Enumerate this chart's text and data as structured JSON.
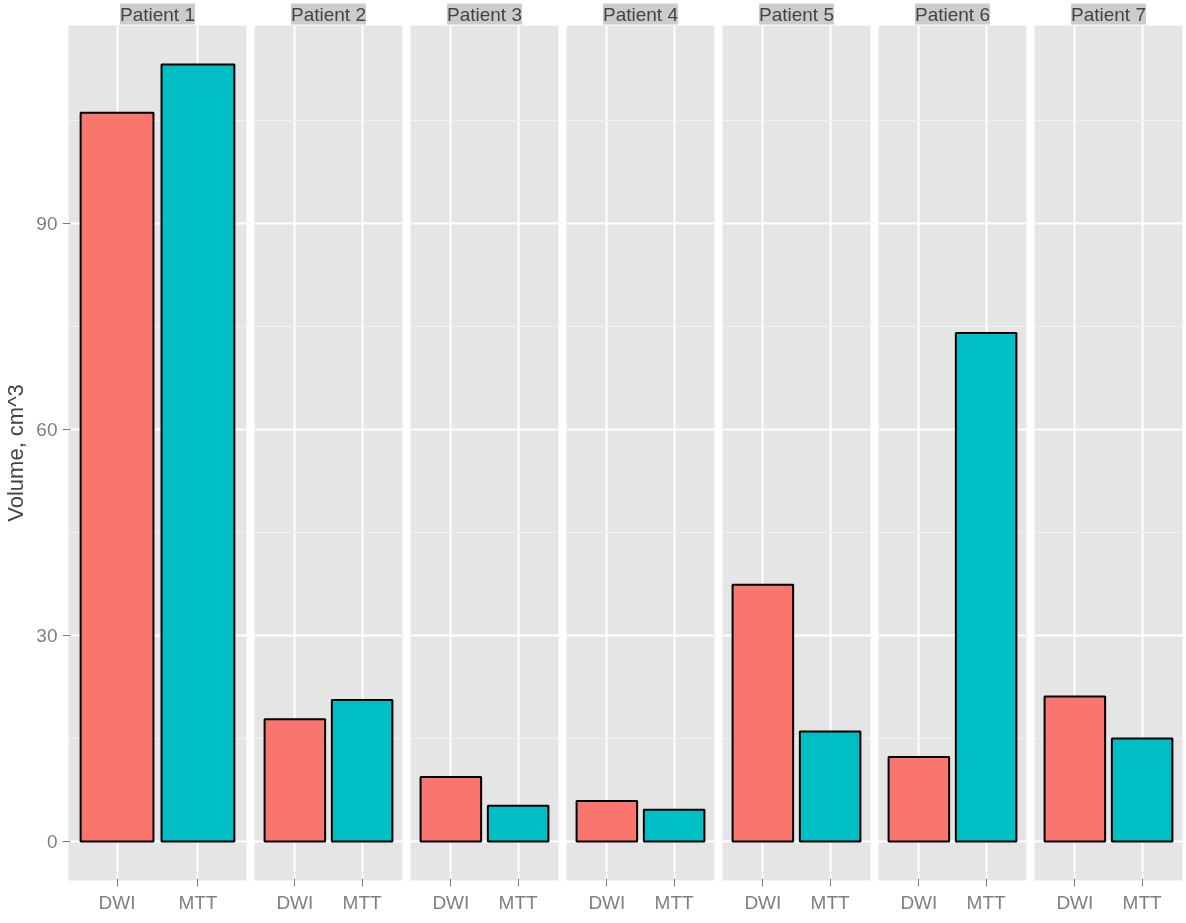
{
  "chart_data": [
    {
      "type": "bar",
      "title": "Patient 1",
      "ylabel": "Volume, cm^3",
      "categories": [
        "DWI",
        "MTT"
      ],
      "values": [
        106.2,
        113.2
      ],
      "colors": [
        "#f8766d",
        "#00bfc4"
      ],
      "ylim": [
        -5.7,
        118.9
      ],
      "yticks": [
        0,
        30,
        60,
        90
      ],
      "grid": true
    },
    {
      "type": "bar",
      "title": "Patient 2",
      "categories": [
        "DWI",
        "MTT"
      ],
      "values": [
        17.8,
        20.6
      ],
      "colors": [
        "#f8766d",
        "#00bfc4"
      ],
      "ylim": [
        -5.7,
        118.9
      ],
      "yticks": [
        0,
        30,
        60,
        90
      ],
      "grid": true,
      "tick_labels": "x"
    },
    {
      "type": "bar",
      "title": "Patient 3",
      "categories": [
        "DWI",
        "MTT"
      ],
      "values": [
        9.4,
        5.2
      ],
      "colors": [
        "#f8766d",
        "#00bfc4"
      ],
      "ylim": [
        -5.7,
        118.9
      ],
      "yticks": [
        0,
        30,
        60,
        90
      ],
      "grid": true,
      "tick_labels": "x"
    },
    {
      "type": "bar",
      "title": "Patient 4",
      "categories": [
        "DWI",
        "MTT"
      ],
      "values": [
        5.9,
        4.6
      ],
      "colors": [
        "#f8766d",
        "#00bfc4"
      ],
      "ylim": [
        -5.7,
        118.9
      ],
      "yticks": [
        0,
        30,
        60,
        90
      ],
      "grid": true,
      "tick_labels": "x"
    },
    {
      "type": "bar",
      "title": "Patient 5",
      "categories": [
        "DWI",
        "MTT"
      ],
      "values": [
        37.4,
        16.0
      ],
      "colors": [
        "#f8766d",
        "#00bfc4"
      ],
      "ylim": [
        -5.7,
        118.9
      ],
      "yticks": [
        0,
        30,
        60,
        90
      ],
      "grid": true,
      "tick_labels": "x"
    },
    {
      "type": "bar",
      "title": "Patient 6",
      "categories": [
        "DWI",
        "MTT"
      ],
      "values": [
        12.3,
        74.1
      ],
      "colors": [
        "#f8766d",
        "#00bfc4"
      ],
      "ylim": [
        -5.7,
        118.9
      ],
      "yticks": [
        0,
        30,
        60,
        90
      ],
      "grid": true,
      "tick_labels": "x"
    },
    {
      "type": "bar",
      "title": "Patient 7",
      "categories": [
        "DWI",
        "MTT"
      ],
      "values": [
        21.1,
        15.0
      ],
      "colors": [
        "#f8766d",
        "#00bfc4"
      ],
      "ylim": [
        -5.7,
        118.9
      ],
      "yticks": [
        0,
        30,
        60,
        90
      ],
      "grid": true,
      "tick_labels": "x"
    }
  ]
}
